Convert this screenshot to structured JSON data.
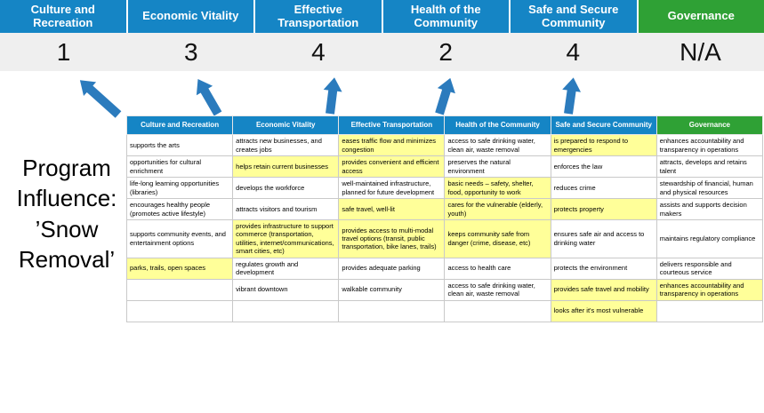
{
  "scorecard": {
    "items": [
      {
        "label": "Culture and Recreation",
        "score": "1",
        "color": "#1585c5"
      },
      {
        "label": "Economic Vitality",
        "score": "3",
        "color": "#1585c5"
      },
      {
        "label": "Effective Transportation",
        "score": "4",
        "color": "#1585c5"
      },
      {
        "label": "Health of the Community",
        "score": "2",
        "color": "#1585c5"
      },
      {
        "label": "Safe and Secure Community",
        "score": "4",
        "color": "#1585c5"
      },
      {
        "label": "Governance",
        "score": "N/A",
        "color": "#2fa135"
      }
    ]
  },
  "program": {
    "label": "Program Influence: ’Snow Removal’"
  },
  "matrix": {
    "headers": [
      {
        "label": "Culture and Recreation",
        "color": "#1585c5"
      },
      {
        "label": "Economic Vitality",
        "color": "#1585c5"
      },
      {
        "label": "Effective Transportation",
        "color": "#1585c5"
      },
      {
        "label": "Health of the Community",
        "color": "#1585c5"
      },
      {
        "label": "Safe and Secure Community",
        "color": "#1585c5"
      },
      {
        "label": "Governance",
        "color": "#2fa135"
      }
    ],
    "rows": [
      [
        {
          "t": "supports the arts",
          "h": false
        },
        {
          "t": "attracts new businesses, and creates jobs",
          "h": false
        },
        {
          "t": "eases traffic flow and minimizes congestion",
          "h": true
        },
        {
          "t": "access to safe drinking water, clean air, waste removal",
          "h": false
        },
        {
          "t": "is prepared to respond to emergencies",
          "h": true
        },
        {
          "t": "enhances accountability and transparency in operations",
          "h": false
        }
      ],
      [
        {
          "t": "opportunities for cultural enrichment",
          "h": false
        },
        {
          "t": "helps retain current businesses",
          "h": true
        },
        {
          "t": "provides convenient and efficient access",
          "h": true
        },
        {
          "t": "preserves the natural environment",
          "h": false
        },
        {
          "t": "enforces the law",
          "h": false
        },
        {
          "t": "attracts, develops and retains talent",
          "h": false
        }
      ],
      [
        {
          "t": "life-long learning opportunities (libraries)",
          "h": false
        },
        {
          "t": "develops the workforce",
          "h": false
        },
        {
          "t": "well-maintained infrastructure, planned for future development",
          "h": false
        },
        {
          "t": "basic needs – safety, shelter, food, opportunity to work",
          "h": true
        },
        {
          "t": "reduces crime",
          "h": false
        },
        {
          "t": "stewardship of financial, human and physical resources",
          "h": false
        }
      ],
      [
        {
          "t": "encourages healthy people (promotes active lifestyle)",
          "h": false
        },
        {
          "t": "attracts visitors and tourism",
          "h": false
        },
        {
          "t": "safe travel, well-lit",
          "h": true
        },
        {
          "t": "cares for the vulnerable (elderly, youth)",
          "h": true
        },
        {
          "t": "protects property",
          "h": true
        },
        {
          "t": "assists and supports decision makers",
          "h": false
        }
      ],
      [
        {
          "t": "supports community events, and entertainment options",
          "h": false
        },
        {
          "t": "provides infrastructure to support commerce (transportation, utilities, internet/communications, smart cities, etc)",
          "h": true
        },
        {
          "t": "provides access to multi-modal travel options (transit, public transportation, bike lanes, trails)",
          "h": true
        },
        {
          "t": "keeps community safe from danger (crime, disease, etc)",
          "h": true
        },
        {
          "t": "ensures safe air and access to drinking water",
          "h": false
        },
        {
          "t": "maintains regulatory compliance",
          "h": false
        }
      ],
      [
        {
          "t": "parks, trails, open spaces",
          "h": true
        },
        {
          "t": "regulates growth and development",
          "h": false
        },
        {
          "t": "provides adequate parking",
          "h": false
        },
        {
          "t": "access to health care",
          "h": false
        },
        {
          "t": "protects the environment",
          "h": false
        },
        {
          "t": "delivers responsible and courteous service",
          "h": false
        }
      ],
      [
        {
          "t": "",
          "h": false
        },
        {
          "t": "vibrant downtown",
          "h": false
        },
        {
          "t": "walkable community",
          "h": false
        },
        {
          "t": "access to safe drinking water, clean air, waste removal",
          "h": false
        },
        {
          "t": "provides safe travel and mobility",
          "h": true
        },
        {
          "t": "enhances accountability and transparency in operations",
          "h": true
        }
      ],
      [
        {
          "t": "",
          "h": false
        },
        {
          "t": "",
          "h": false
        },
        {
          "t": "",
          "h": false
        },
        {
          "t": "",
          "h": false
        },
        {
          "t": "looks after it's most vulnerable",
          "h": true
        },
        {
          "t": "",
          "h": false
        }
      ]
    ]
  },
  "colors": {
    "highlight": "#ffff99",
    "arrow": "#2b7bbd",
    "scoreband": "#efefef",
    "grid": "#c9c9c9",
    "pillar_blue": "#1585c5",
    "pillar_green": "#2fa135"
  }
}
